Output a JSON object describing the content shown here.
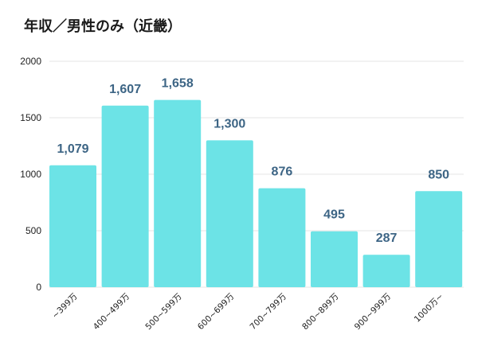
{
  "chart_data": {
    "type": "bar",
    "title": "年収／男性のみ（近畿）",
    "xlabel": "",
    "ylabel": "",
    "categories": [
      "~399万",
      "400~499万",
      "500~599万",
      "600~699万",
      "700~799万",
      "800~899万",
      "900~999万",
      "1000万~"
    ],
    "values": [
      1079,
      1607,
      1658,
      1300,
      876,
      495,
      287,
      850
    ],
    "data_labels": [
      "1,079",
      "1,607",
      "1,658",
      "1,300",
      "876",
      "495",
      "287",
      "850"
    ],
    "ylim": [
      0,
      2000
    ],
    "yticks": [
      0,
      500,
      1000,
      1500,
      2000
    ],
    "grid": true,
    "legend": "none",
    "bar_color": "#6ce3e6",
    "label_color": "#3d6585",
    "grid_color": "#e4e4e4"
  }
}
